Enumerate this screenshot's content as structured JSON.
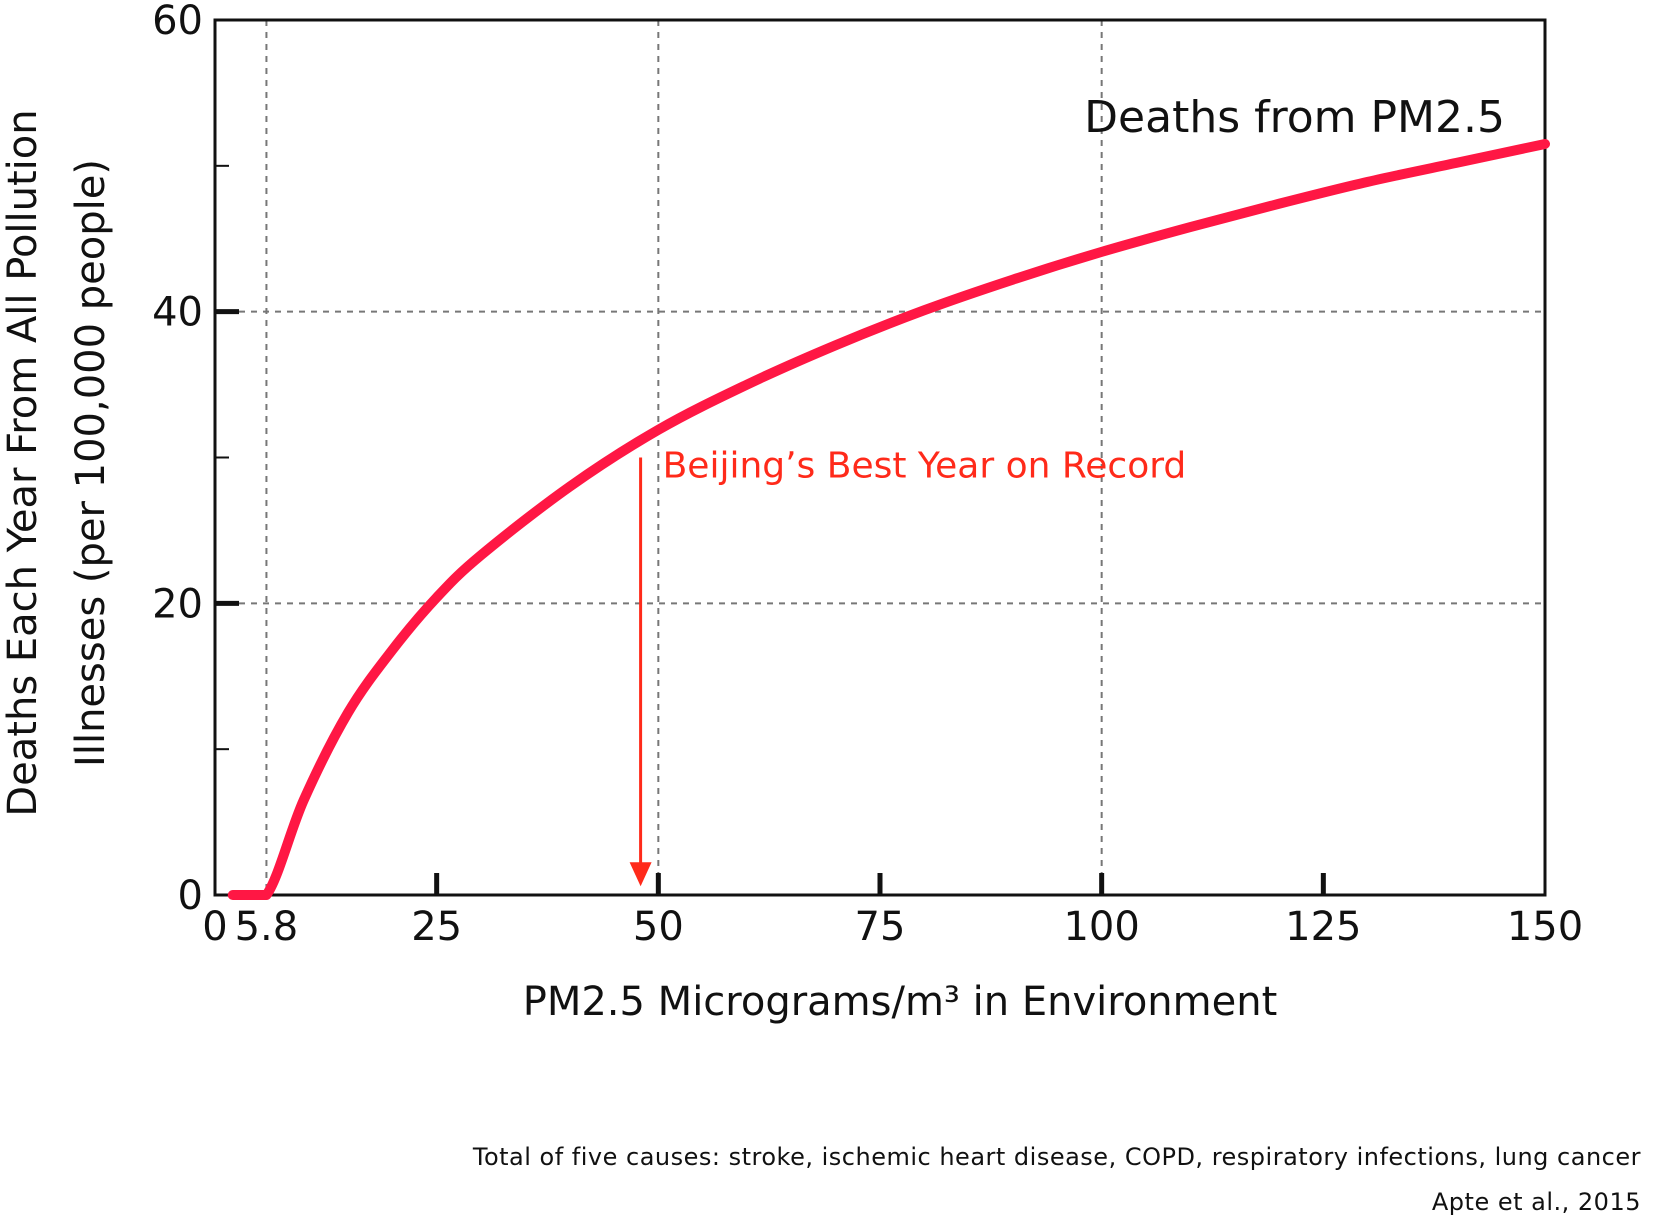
{
  "chart_data": {
    "type": "line",
    "xlabel": "PM2.5 Micrograms/m³ in Environment",
    "ylabel_lines": [
      "Deaths Each Year From All Pollution",
      "Illnesses (per 100,000 people)"
    ],
    "xlim": [
      0,
      150
    ],
    "ylim": [
      0,
      60
    ],
    "x_ticks": [
      0,
      5.8,
      25,
      50,
      75,
      100,
      125,
      150
    ],
    "x_tick_labels": [
      "0",
      "5.8",
      "25",
      "50",
      "75",
      "100",
      "125",
      "150"
    ],
    "y_ticks": [
      0,
      20,
      40,
      60
    ],
    "y_tick_labels": [
      "0",
      "20",
      "40",
      "60"
    ],
    "y_minor_ticks": [
      10,
      30,
      50
    ],
    "grid": true,
    "grid_style": "dashed",
    "grid_x": [
      5.8,
      50,
      100
    ],
    "grid_y": [
      20,
      40
    ],
    "series": [
      {
        "name": "Deaths from PM2.5",
        "color": "#ff1744",
        "x": [
          2,
          5.8,
          10,
          15,
          20,
          25,
          30,
          40,
          50,
          60,
          70,
          80,
          90,
          100,
          110,
          120,
          130,
          140,
          150
        ],
        "y": [
          0,
          0,
          6.5,
          12.5,
          16.8,
          20.4,
          23.3,
          28,
          31.9,
          35.0,
          37.7,
          40.1,
          42.2,
          44.1,
          45.8,
          47.4,
          48.9,
          50.2,
          51.5
        ]
      }
    ],
    "annotations": [
      {
        "text": "Beijing’s Best Year on Record",
        "color": "#ff2a1a",
        "arrow_x": 48,
        "arrow_from_y": 30,
        "arrow_to_y": 0.6
      }
    ]
  },
  "footnotes": {
    "causes": "Total of five causes: stroke, ischemic heart disease, COPD, respiratory infections, lung cancer",
    "source": "Apte et al., 2015"
  }
}
